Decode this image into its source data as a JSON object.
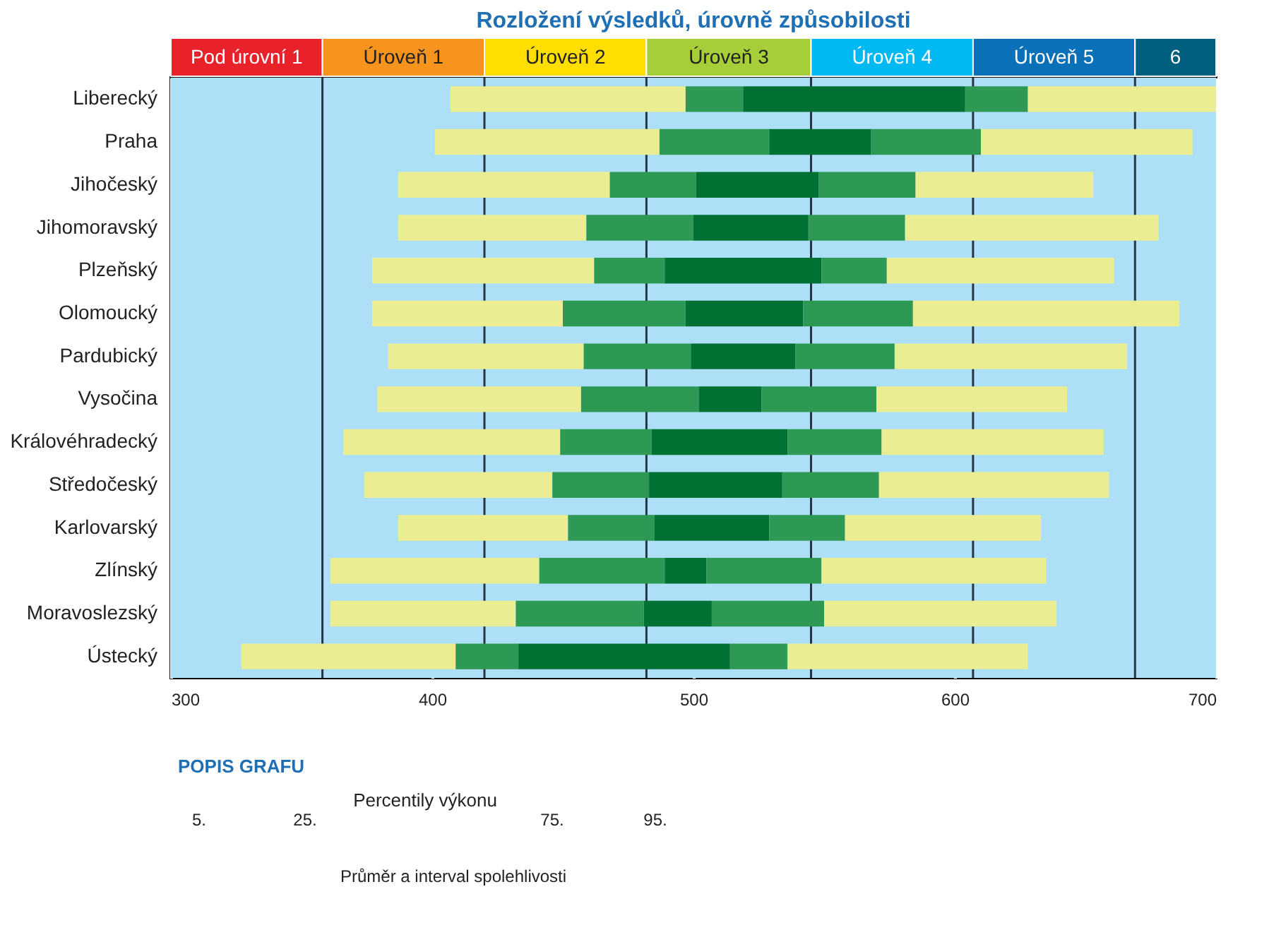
{
  "chart_data": {
    "type": "bar",
    "orientation": "horizontal",
    "title": "Rozložení výsledků, úrovně způsobilosti",
    "categories": [
      "Liberecký",
      "Praha",
      "Jihočeský",
      "Jihomoravský",
      "Plzeňský",
      "Olomoucký",
      "Pardubický",
      "Vysočina",
      "Královéhradecký",
      "Středočeský",
      "Karlovarský",
      "Zlínský",
      "Moravoslezský",
      "Ústecký"
    ],
    "series": [
      {
        "color": "#eaed92",
        "base": [
          407,
          401,
          387,
          387,
          377,
          377,
          383,
          379,
          366,
          374,
          387,
          361,
          361,
          327
        ],
        "values": [
          90,
          86,
          81,
          72,
          85,
          73,
          75,
          78,
          83,
          72,
          65,
          80,
          71,
          82
        ]
      },
      {
        "color": "#2e9955",
        "base": [
          497,
          487,
          468,
          459,
          462,
          450,
          458,
          457,
          449,
          446,
          452,
          441,
          432,
          409
        ],
        "values": [
          22,
          42,
          33,
          41,
          27,
          47,
          41,
          45,
          35,
          37,
          33,
          48,
          49,
          24
        ]
      },
      {
        "color": "#007033",
        "base": [
          519,
          529,
          501,
          500,
          489,
          497,
          499,
          502,
          484,
          483,
          485,
          489,
          481,
          433
        ],
        "values": [
          85,
          39,
          47,
          44,
          60,
          45,
          40,
          24,
          52,
          51,
          44,
          16,
          26,
          81
        ]
      },
      {
        "color": "#2e9955",
        "base": [
          604,
          568,
          548,
          544,
          549,
          542,
          539,
          526,
          536,
          534,
          529,
          505,
          507,
          514
        ],
        "values": [
          24,
          42,
          37,
          37,
          25,
          42,
          38,
          44,
          36,
          37,
          29,
          44,
          43,
          22
        ]
      },
      {
        "color": "#eaed92",
        "base": [
          628,
          610,
          585,
          581,
          574,
          584,
          577,
          570,
          572,
          571,
          558,
          549,
          550,
          536
        ],
        "values": [
          72,
          81,
          68,
          97,
          87,
          102,
          89,
          73,
          85,
          88,
          75,
          86,
          89,
          92
        ]
      }
    ],
    "xlim": [
      300,
      700
    ],
    "xticks": [
      300,
      400,
      500,
      600,
      700
    ],
    "grid": "x",
    "bands": [
      {
        "axis": "x",
        "from": 300,
        "to": 358,
        "label": "Pod úrovní 1",
        "color": "#ade0f7"
      },
      {
        "axis": "x",
        "from": 358,
        "to": 420,
        "label": "Úroveň 1",
        "color": "#ade0f7"
      },
      {
        "axis": "x",
        "from": 420,
        "to": 482,
        "label": "Úroveň 2",
        "color": "#ade0f7"
      },
      {
        "axis": "x",
        "from": 482,
        "to": 545,
        "label": "Úroveň 3",
        "color": "#ade0f7"
      },
      {
        "axis": "x",
        "from": 545,
        "to": 607,
        "label": "Úroveň 4",
        "color": "#ade0f7"
      },
      {
        "axis": "x",
        "from": 607,
        "to": 669,
        "label": "Úroveň 5",
        "color": "#ade0f7"
      },
      {
        "axis": "x",
        "from": 669,
        "to": 700,
        "label": "6",
        "color": "#ade0f7"
      }
    ],
    "annotations": [
      "POPIS GRAFU",
      "Percentily výkonu",
      "5.",
      "25.",
      "75.",
      "95.",
      "Průměr a interval spolehlivosti"
    ]
  }
}
